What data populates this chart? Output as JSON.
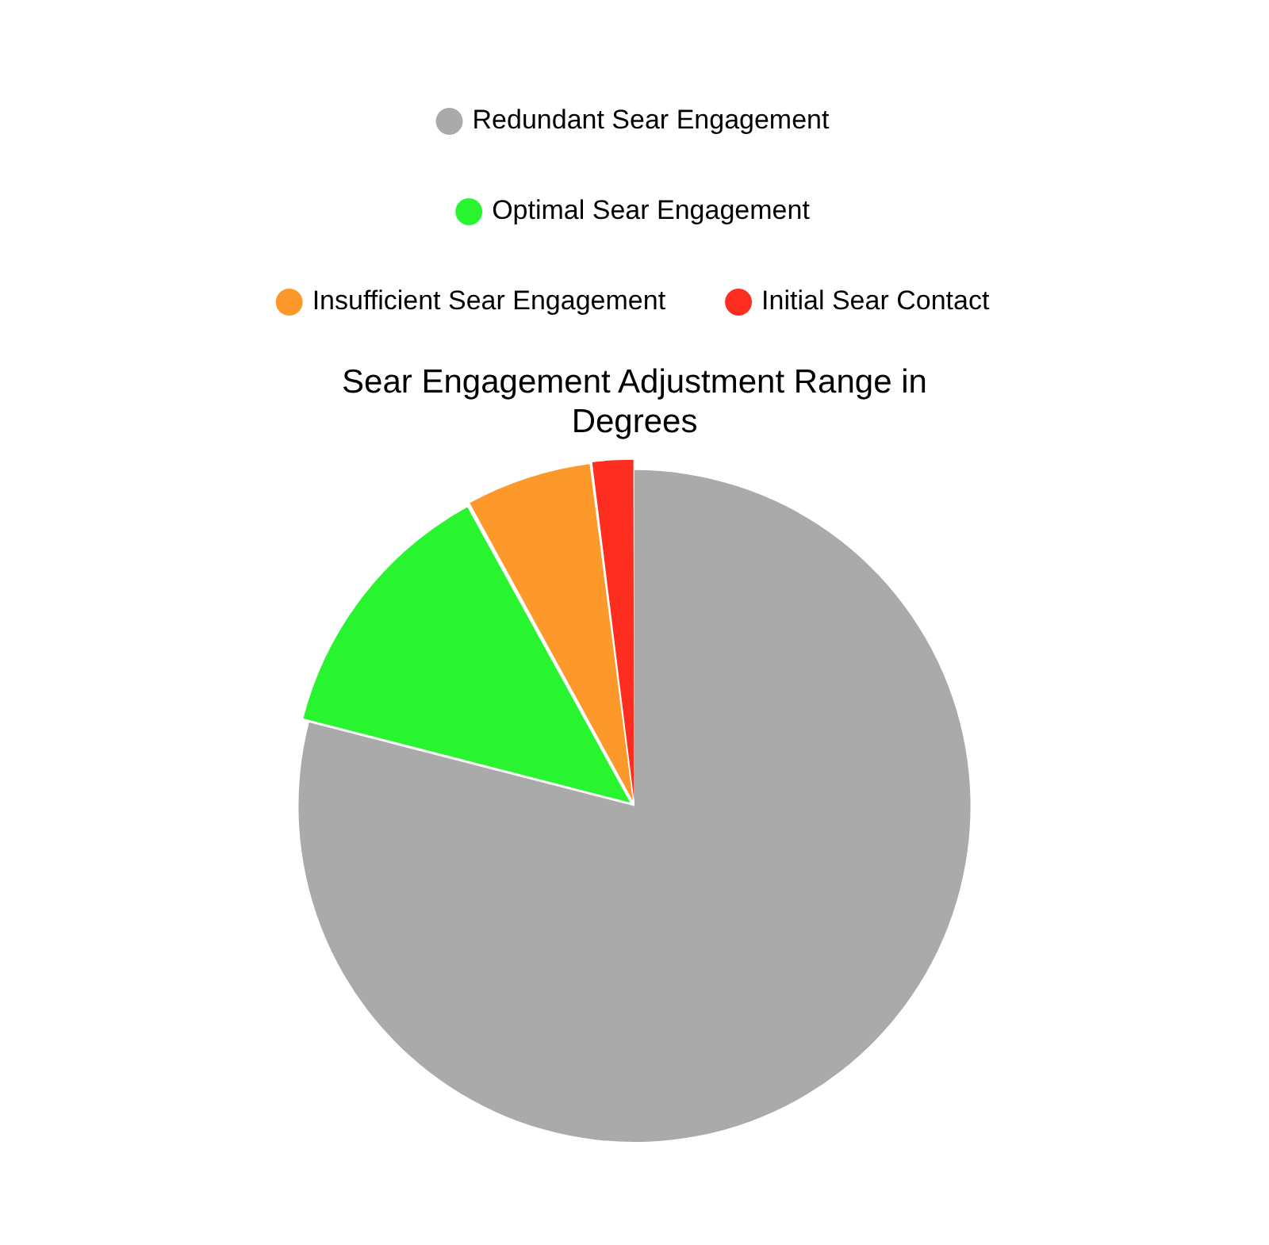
{
  "chart_data": {
    "type": "pie",
    "title": "Sear Engagement Adjustment Range in Degrees",
    "categories": [
      "Redundant Sear Engagement",
      "Optimal Sear Engagement",
      "Insufficient Sear Engagement",
      "Initial Sear Contact"
    ],
    "values": [
      79,
      13,
      6,
      2
    ],
    "colors": [
      "#aaaaaa",
      "#28f52f",
      "#fd982a",
      "#fd2d20"
    ],
    "legend": "top"
  }
}
